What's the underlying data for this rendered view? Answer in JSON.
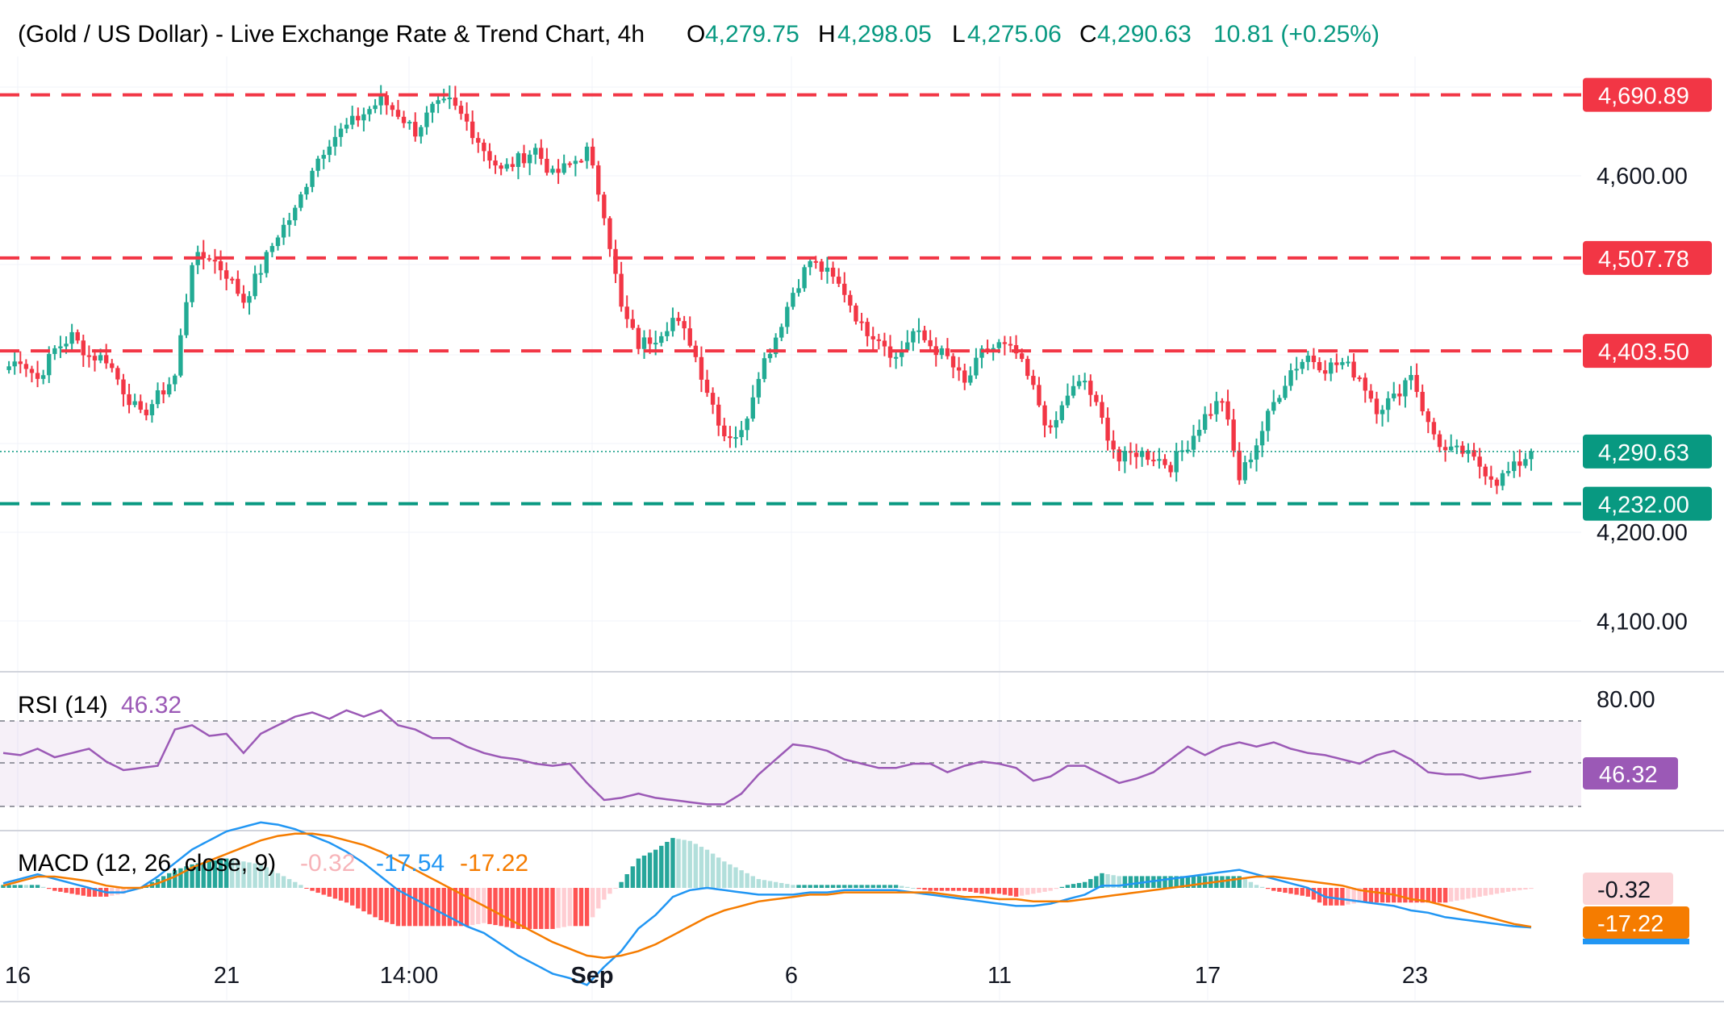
{
  "header": {
    "title": "(Gold / US Dollar) - Live Exchange Rate & Trend Chart, 4h",
    "o_label": "O",
    "o_value": "4,279.75",
    "h_label": "H",
    "h_value": "4,298.05",
    "l_label": "L",
    "l_value": "4,275.06",
    "c_label": "C",
    "c_value": "4,290.63",
    "change": "10.81 (+0.25%)"
  },
  "colors": {
    "up": "#22ab94",
    "down": "#f23645",
    "rsi": "#9b59b6",
    "macd": "#2196f3",
    "signal": "#f57c00"
  },
  "price_axis": {
    "ticks": [
      "4,600.00",
      "4,200.00",
      "4,100.00"
    ]
  },
  "time_axis": {
    "labels": [
      "16",
      "21",
      "14:00",
      "Sep",
      "6",
      "11",
      "17",
      "23"
    ]
  },
  "levels": [
    {
      "value": 4690.89,
      "label": "4,690.89",
      "color": "#f23645"
    },
    {
      "value": 4507.78,
      "label": "4,507.78",
      "color": "#f23645"
    },
    {
      "value": 4403.5,
      "label": "4,403.50",
      "color": "#f23645"
    },
    {
      "value": 4232.0,
      "label": "4,232.00",
      "color": "#089981"
    }
  ],
  "last_price": {
    "value": 4290.63,
    "label": "4,290.63"
  },
  "rsi": {
    "title": "RSI (14)",
    "value": "46.32",
    "ticks": [
      "80.00"
    ],
    "upper": 70,
    "mid": 50,
    "lower": 30
  },
  "macd": {
    "title": "MACD (12, 26, close, 9)",
    "hist_value": "-0.32",
    "macd_value": "-17.54",
    "signal_value": "-17.22",
    "tag_hist": "-0.32",
    "tag_signal": "-17.22"
  },
  "chart_data": {
    "type": "candlestick",
    "title": "(Gold / US Dollar) - Live Exchange Rate & Trend Chart, 4h",
    "timeframe": "4h",
    "ylim": [
      4060,
      4720
    ],
    "anchors": [
      4382,
      4395,
      4372,
      4405,
      4420,
      4398,
      4395,
      4360,
      4330,
      4352,
      4375,
      4505,
      4510,
      4490,
      4460,
      4495,
      4535,
      4560,
      4610,
      4640,
      4655,
      4670,
      4685,
      4670,
      4650,
      4675,
      4682,
      4660,
      4630,
      4605,
      4618,
      4630,
      4600,
      4612,
      4628,
      4560,
      4450,
      4410,
      4420,
      4440,
      4415,
      4360,
      4310,
      4310,
      4380,
      4420,
      4470,
      4505,
      4490,
      4470,
      4430,
      4420,
      4395,
      4425,
      4410,
      4395,
      4365,
      4400,
      4410,
      4400,
      4360,
      4310,
      4355,
      4370,
      4325,
      4280,
      4290,
      4285,
      4275,
      4300,
      4330,
      4350,
      4260,
      4300,
      4345,
      4382,
      4398,
      4385,
      4390,
      4375,
      4340,
      4350,
      4380,
      4320,
      4290,
      4290,
      4275,
      4258,
      4272,
      4290.63
    ],
    "rsi_values": [
      55,
      54,
      57,
      53,
      55,
      57,
      51,
      47,
      48,
      49,
      66,
      68,
      63,
      64,
      55,
      64,
      68,
      72,
      74,
      71,
      75,
      72,
      75,
      68,
      66,
      62,
      62,
      58,
      55,
      53,
      52,
      50,
      49,
      50,
      41,
      33,
      34,
      36,
      34,
      33,
      32,
      31,
      31,
      36,
      45,
      52,
      59,
      58,
      56,
      52,
      50,
      48,
      48,
      50,
      50,
      46,
      49,
      51,
      50,
      48,
      42,
      44,
      49,
      49,
      45,
      41,
      43,
      46,
      52,
      58,
      54,
      58,
      60,
      58,
      60,
      57,
      55,
      54,
      52,
      50,
      54,
      56,
      52,
      46,
      45,
      45,
      43,
      44,
      45,
      46.32
    ],
    "macd_values": [
      2,
      4,
      6,
      4,
      2,
      0,
      -2,
      -2,
      0,
      5,
      11,
      17,
      21,
      25,
      27,
      29,
      28,
      26,
      23,
      20,
      16,
      11,
      5,
      -1,
      -5,
      -9,
      -13,
      -17,
      -20,
      -25,
      -30,
      -34,
      -38,
      -40,
      -43,
      -35,
      -28,
      -18,
      -12,
      -4,
      -1,
      0,
      -1,
      -2,
      -3,
      -3,
      -3,
      -2,
      -2,
      -1,
      -1,
      -1,
      -1,
      -2,
      -3,
      -4,
      -5,
      -6,
      -7,
      -8,
      -8,
      -7,
      -5,
      -3,
      1,
      1,
      2,
      3,
      4,
      5,
      6,
      7,
      8,
      6,
      4,
      2,
      0,
      -4,
      -5,
      -6,
      -7,
      -8,
      -10,
      -11,
      -13,
      -14,
      -15,
      -16,
      -17,
      -17.54
    ],
    "signal_values": [
      1,
      3,
      5,
      5,
      4,
      3,
      1,
      0,
      0,
      2,
      5,
      9,
      12,
      15,
      18,
      21,
      23,
      24,
      24,
      23,
      21,
      19,
      16,
      12,
      8,
      4,
      0,
      -4,
      -8,
      -12,
      -16,
      -20,
      -24,
      -27,
      -30,
      -31,
      -30,
      -28,
      -25,
      -21,
      -17,
      -13,
      -10,
      -8,
      -6,
      -5,
      -4,
      -3,
      -3,
      -2,
      -2,
      -2,
      -2,
      -2,
      -2,
      -3,
      -4,
      -4,
      -5,
      -5,
      -6,
      -6,
      -6,
      -5,
      -4,
      -3,
      -2,
      -1,
      0,
      1,
      2,
      3,
      4,
      5,
      5,
      4,
      3,
      2,
      1,
      -1,
      -2,
      -3,
      -5,
      -6,
      -8,
      -10,
      -12,
      -14,
      -16,
      -17.22
    ],
    "macd_ylim": [
      -48,
      36
    ],
    "rsi_ylim": [
      20,
      90
    ]
  }
}
